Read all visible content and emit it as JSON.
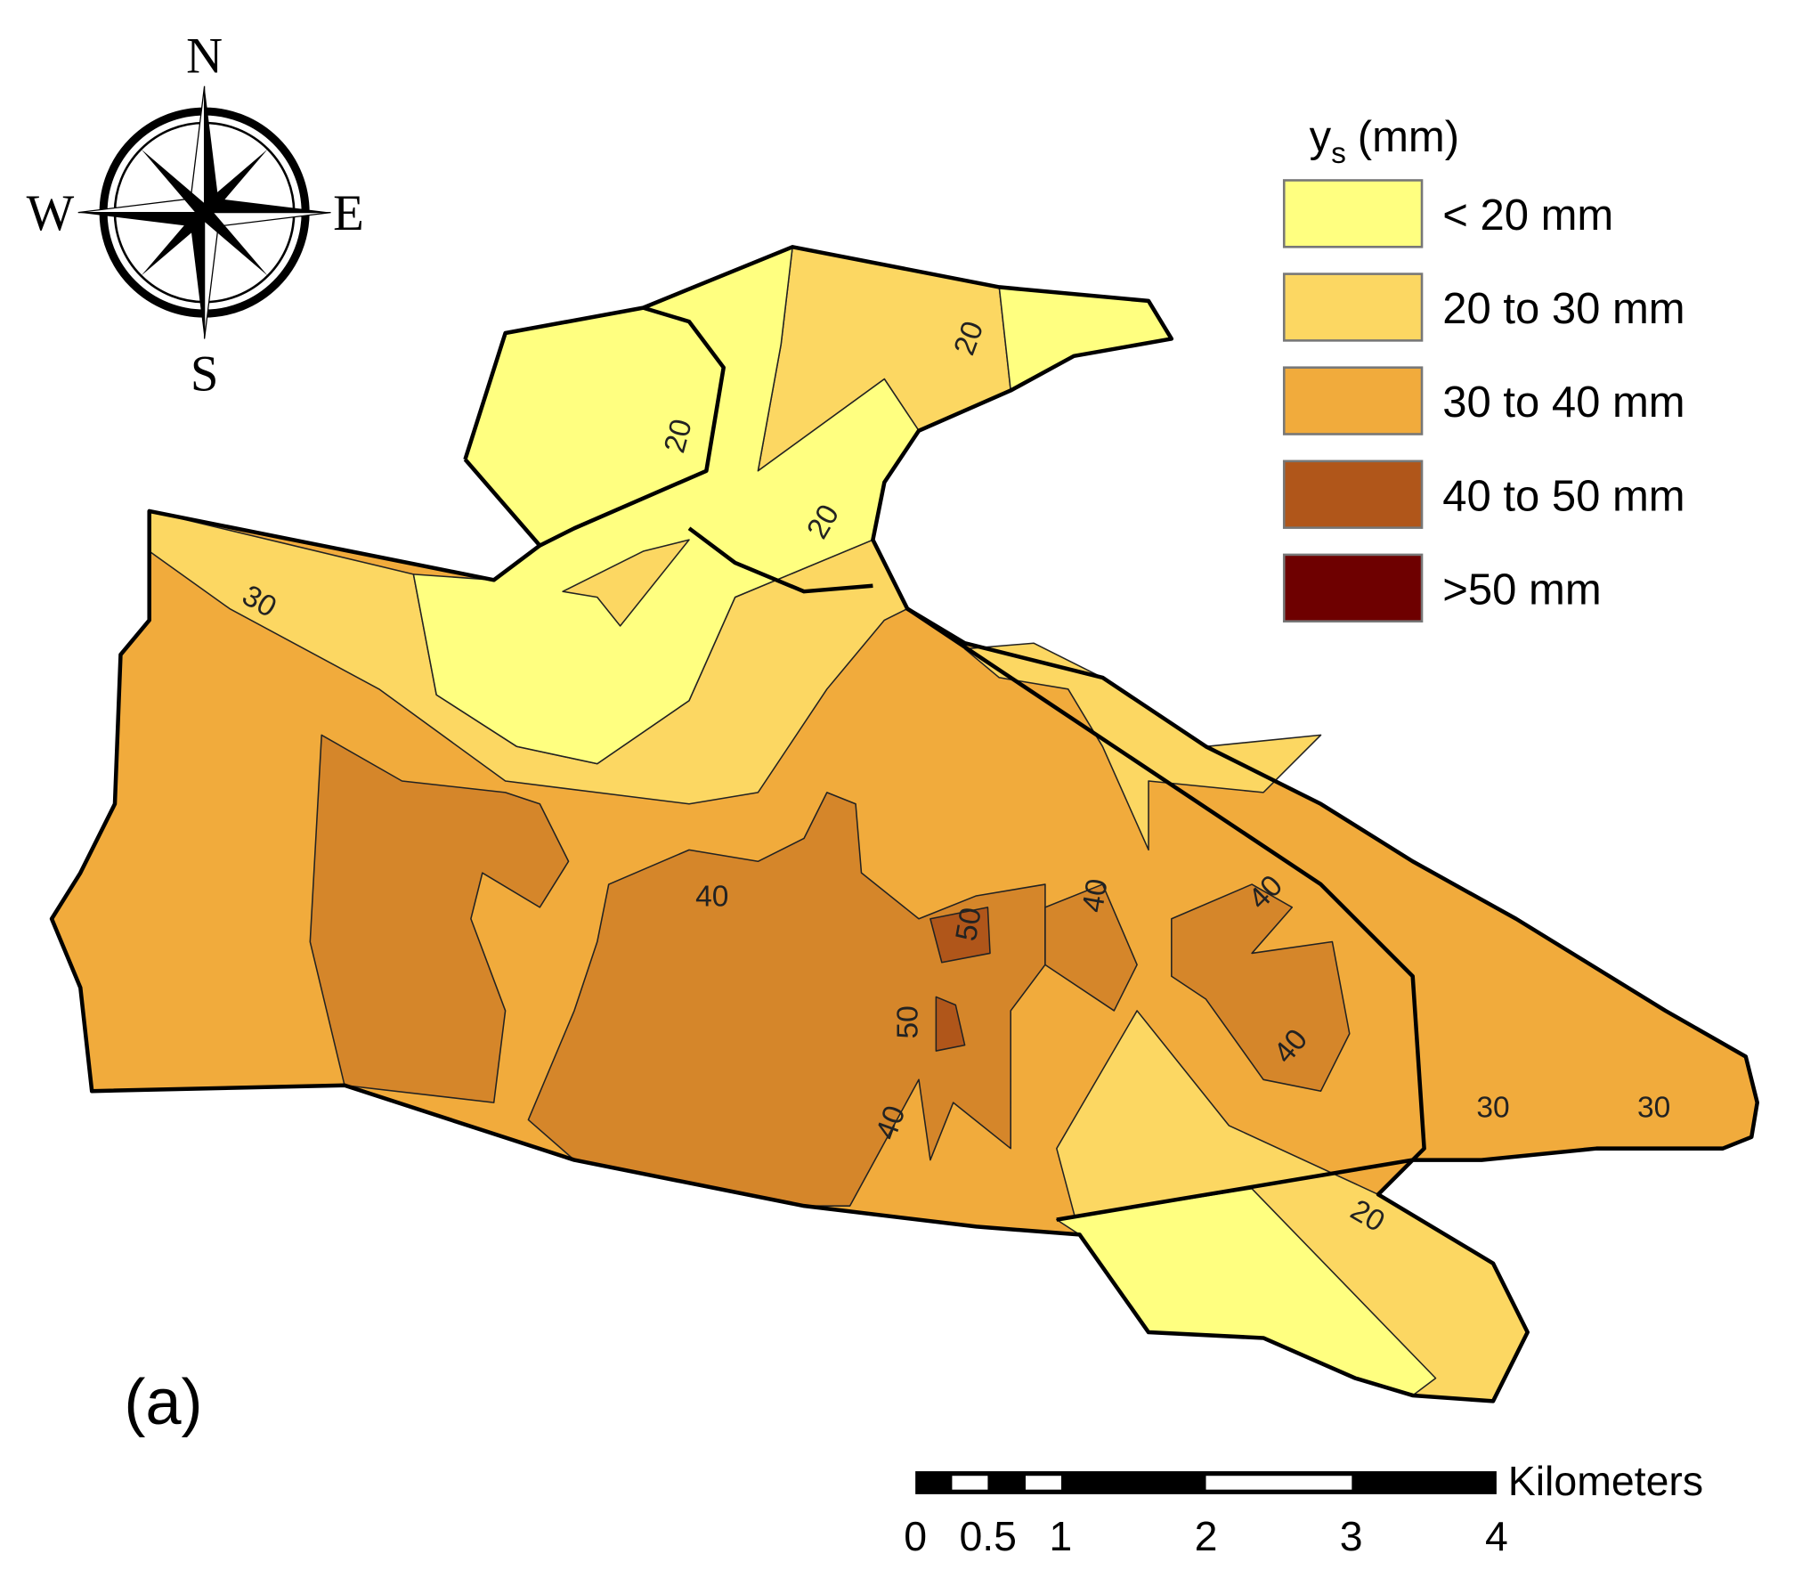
{
  "compass": {
    "north": "N",
    "south": "S",
    "east": "E",
    "west": "W"
  },
  "legend": {
    "title": "y",
    "title_subscript": "s",
    "title_unit": "(mm)",
    "items": [
      {
        "label": "< 20 mm",
        "color": "#ffff80"
      },
      {
        "label": "20 to 30 mm",
        "color": "#fcd762"
      },
      {
        "label": "30 to 40 mm",
        "color": "#f1ab3c"
      },
      {
        "label": "40 to 50 mm",
        "color": "#b0561a"
      },
      {
        "label": ">50 mm",
        "color": "#6e0000"
      }
    ]
  },
  "contour_labels": [
    20,
    20,
    20,
    30,
    40,
    50,
    40,
    40,
    50,
    40,
    40,
    30,
    30,
    20
  ],
  "panel_label": "(a)",
  "scale_bar": {
    "unit": "Kilometers",
    "ticks": [
      0,
      0.5,
      1,
      2,
      3,
      4
    ]
  }
}
